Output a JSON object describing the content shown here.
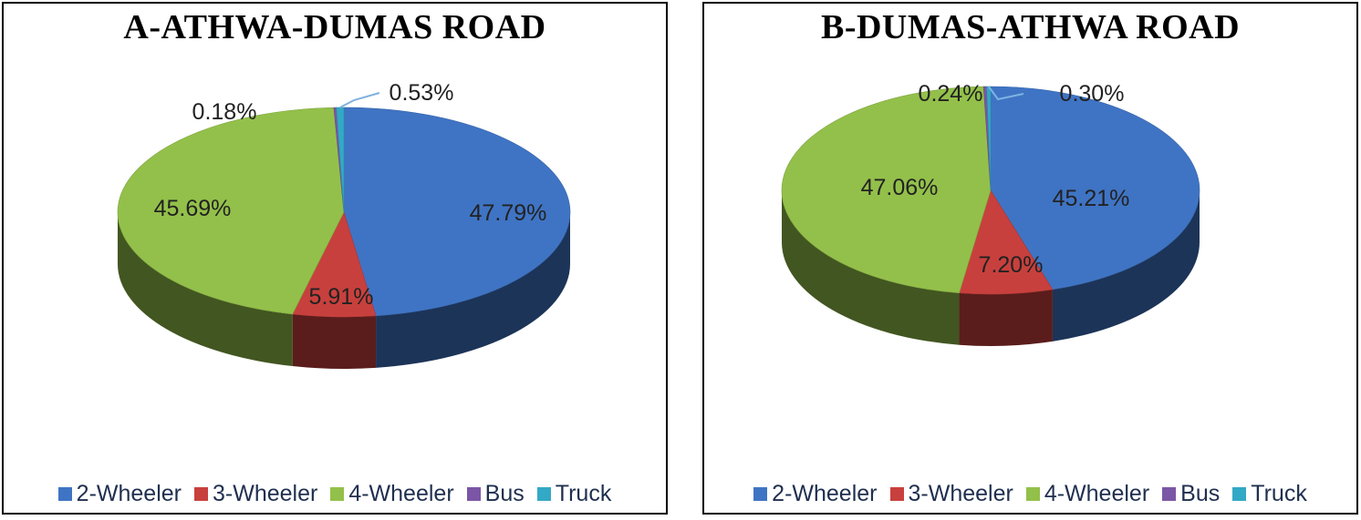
{
  "chart_data": [
    {
      "type": "pie",
      "title": "A-ATHWA-DUMAS ROAD",
      "categories": [
        "2-Wheeler",
        "3-Wheeler",
        "4-Wheeler",
        "Bus",
        "Truck"
      ],
      "values": [
        47.79,
        5.91,
        45.69,
        0.18,
        0.53
      ],
      "labels": [
        "47.79%",
        "5.91%",
        "45.69%",
        "0.18%",
        "0.53%"
      ],
      "colors": [
        "#3f74c4",
        "#c8403d",
        "#93c04a",
        "#7b56a6",
        "#33a9c6"
      ],
      "legend": "bottom",
      "style": "3d"
    },
    {
      "type": "pie",
      "title": "B-DUMAS-ATHWA ROAD",
      "categories": [
        "2-Wheeler",
        "3-Wheeler",
        "4-Wheeler",
        "Bus",
        "Truck"
      ],
      "values": [
        45.21,
        7.2,
        47.06,
        0.24,
        0.3
      ],
      "labels": [
        "45.21%",
        "7.20%",
        "47.06%",
        "0.24%",
        "0.30%"
      ],
      "colors": [
        "#3f74c4",
        "#c8403d",
        "#93c04a",
        "#7b56a6",
        "#33a9c6"
      ],
      "legend": "bottom",
      "style": "3d"
    }
  ]
}
